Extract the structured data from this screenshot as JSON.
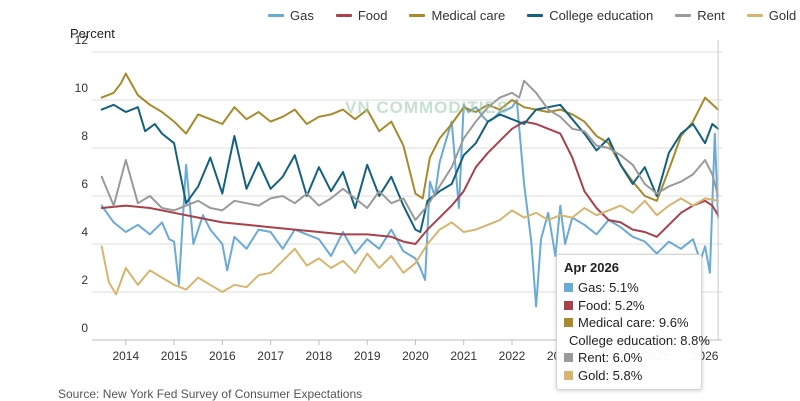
{
  "chart_data": {
    "type": "line",
    "ylabel": "Percent",
    "ylim": [
      0,
      12
    ],
    "yticks": [
      0,
      2,
      4,
      6,
      8,
      10,
      12
    ],
    "xlim": [
      2013.3,
      2026.35
    ],
    "xticks": [
      "2014",
      "2015",
      "2016",
      "2017",
      "2018",
      "2019",
      "2020",
      "2021",
      "2022",
      "2023",
      "2024",
      "2025",
      "2026"
    ],
    "grid": "horizontal",
    "legend_position": "top",
    "source": "Source: New York Fed Survey of Consumer Expectations",
    "series": [
      {
        "name": "Gas",
        "color": "#6aaad6",
        "x": [
          2013.5,
          2013.75,
          2014.0,
          2014.25,
          2014.5,
          2014.75,
          2014.9,
          2015.0,
          2015.1,
          2015.25,
          2015.4,
          2015.6,
          2015.75,
          2016.0,
          2016.1,
          2016.25,
          2016.5,
          2016.75,
          2017.0,
          2017.25,
          2017.5,
          2017.75,
          2018.0,
          2018.25,
          2018.5,
          2018.75,
          2019.0,
          2019.25,
          2019.5,
          2019.75,
          2020.0,
          2020.1,
          2020.2,
          2020.3,
          2020.4,
          2020.5,
          2020.6,
          2020.75,
          2020.9,
          2021.0,
          2021.1,
          2021.25,
          2021.4,
          2021.5,
          2021.6,
          2021.75,
          2021.9,
          2022.0,
          2022.1,
          2022.25,
          2022.4,
          2022.5,
          2022.6,
          2022.75,
          2022.9,
          2023.0,
          2023.1,
          2023.25,
          2023.5,
          2023.75,
          2024.0,
          2024.25,
          2024.5,
          2024.75,
          2025.0,
          2025.25,
          2025.5,
          2025.75,
          2025.9,
          2026.0,
          2026.1,
          2026.2,
          2026.27
        ],
        "y": [
          5.6,
          4.9,
          4.5,
          4.8,
          4.4,
          4.9,
          4.2,
          4.1,
          2.3,
          7.3,
          4.0,
          5.2,
          4.6,
          4.0,
          2.9,
          4.3,
          3.8,
          4.6,
          4.5,
          3.8,
          4.6,
          4.4,
          4.2,
          3.5,
          4.5,
          3.6,
          4.2,
          3.8,
          4.6,
          3.7,
          3.4,
          3.0,
          2.5,
          6.6,
          6.0,
          7.4,
          8.1,
          9.1,
          5.5,
          9.8,
          9.5,
          9.7,
          9.3,
          9.1,
          9.2,
          9.5,
          9.6,
          9.7,
          10.0,
          6.5,
          4.1,
          1.4,
          4.2,
          5.3,
          3.5,
          5.6,
          4.0,
          5.1,
          4.8,
          4.4,
          5.0,
          4.7,
          4.3,
          4.1,
          3.6,
          4.1,
          3.8,
          4.2,
          3.3,
          3.9,
          2.8,
          8.6,
          5.1
        ]
      },
      {
        "name": "Food",
        "color": "#a8414a",
        "x": [
          2013.5,
          2014.0,
          2014.5,
          2015.0,
          2015.5,
          2016.0,
          2016.5,
          2017.0,
          2017.5,
          2018.0,
          2018.5,
          2019.0,
          2019.5,
          2019.75,
          2020.0,
          2020.25,
          2020.5,
          2020.75,
          2021.0,
          2021.25,
          2021.5,
          2021.75,
          2022.0,
          2022.25,
          2022.5,
          2022.75,
          2023.0,
          2023.25,
          2023.5,
          2023.75,
          2024.0,
          2024.25,
          2024.5,
          2024.75,
          2025.0,
          2025.25,
          2025.5,
          2025.75,
          2026.0,
          2026.15,
          2026.27
        ],
        "y": [
          5.5,
          5.6,
          5.5,
          5.3,
          5.1,
          4.9,
          4.8,
          4.7,
          4.6,
          4.5,
          4.4,
          4.4,
          4.3,
          4.1,
          4.0,
          4.6,
          5.1,
          5.6,
          6.2,
          7.2,
          7.8,
          8.3,
          8.8,
          9.1,
          9.0,
          8.8,
          8.6,
          7.6,
          6.2,
          5.5,
          5.0,
          4.9,
          4.6,
          4.5,
          4.3,
          4.8,
          5.3,
          5.6,
          5.8,
          5.6,
          5.2
        ]
      },
      {
        "name": "Medical care",
        "color": "#a88a2c",
        "x": [
          2013.5,
          2013.75,
          2013.9,
          2014.0,
          2014.25,
          2014.5,
          2014.75,
          2015.0,
          2015.25,
          2015.5,
          2015.75,
          2016.0,
          2016.25,
          2016.5,
          2016.75,
          2017.0,
          2017.25,
          2017.5,
          2017.75,
          2018.0,
          2018.25,
          2018.5,
          2018.75,
          2019.0,
          2019.25,
          2019.5,
          2019.75,
          2020.0,
          2020.15,
          2020.3,
          2020.5,
          2020.75,
          2021.0,
          2021.25,
          2021.5,
          2021.75,
          2022.0,
          2022.25,
          2022.5,
          2022.75,
          2023.0,
          2023.25,
          2023.5,
          2023.75,
          2024.0,
          2024.25,
          2024.5,
          2024.75,
          2025.0,
          2025.25,
          2025.5,
          2025.75,
          2026.0,
          2026.27
        ],
        "y": [
          10.1,
          10.3,
          10.7,
          11.1,
          10.2,
          9.8,
          9.5,
          9.1,
          8.6,
          9.4,
          9.2,
          9.0,
          9.7,
          9.2,
          9.5,
          9.1,
          9.3,
          9.6,
          9.0,
          9.3,
          9.4,
          9.6,
          9.2,
          9.6,
          8.7,
          9.1,
          8.1,
          6.1,
          5.9,
          7.6,
          8.4,
          9.0,
          9.7,
          9.5,
          9.8,
          9.6,
          10.0,
          9.7,
          9.6,
          9.5,
          9.6,
          9.4,
          9.1,
          8.5,
          8.2,
          7.3,
          6.6,
          6.0,
          5.8,
          7.1,
          8.5,
          9.1,
          10.1,
          9.6
        ]
      },
      {
        "name": "College education",
        "color": "#13617f",
        "x": [
          2013.5,
          2013.75,
          2014.0,
          2014.25,
          2014.4,
          2014.6,
          2014.75,
          2015.0,
          2015.25,
          2015.5,
          2015.75,
          2016.0,
          2016.25,
          2016.5,
          2016.75,
          2017.0,
          2017.25,
          2017.5,
          2017.75,
          2018.0,
          2018.25,
          2018.5,
          2018.75,
          2019.0,
          2019.25,
          2019.5,
          2019.75,
          2020.0,
          2020.1,
          2020.25,
          2020.5,
          2020.75,
          2021.0,
          2021.25,
          2021.5,
          2021.75,
          2022.0,
          2022.25,
          2022.5,
          2022.75,
          2023.0,
          2023.25,
          2023.5,
          2023.75,
          2024.0,
          2024.25,
          2024.5,
          2024.75,
          2025.0,
          2025.25,
          2025.5,
          2025.75,
          2026.0,
          2026.15,
          2026.27
        ],
        "y": [
          9.6,
          9.8,
          9.5,
          9.7,
          8.7,
          9.0,
          8.6,
          8.2,
          5.7,
          6.4,
          7.6,
          6.1,
          8.5,
          6.3,
          7.4,
          6.3,
          6.8,
          7.7,
          6.0,
          7.2,
          6.2,
          7.0,
          5.5,
          7.3,
          6.0,
          6.8,
          5.6,
          4.6,
          4.5,
          5.8,
          6.2,
          6.5,
          7.7,
          8.2,
          9.1,
          9.4,
          9.2,
          9.0,
          9.6,
          9.7,
          9.8,
          9.2,
          8.6,
          7.9,
          8.4,
          7.3,
          6.5,
          7.2,
          6.0,
          7.8,
          8.6,
          9.0,
          8.2,
          9.0,
          8.8
        ]
      },
      {
        "name": "Rent",
        "color": "#9a9a9a",
        "x": [
          2013.5,
          2013.75,
          2014.0,
          2014.25,
          2014.5,
          2014.75,
          2015.0,
          2015.25,
          2015.5,
          2015.75,
          2016.0,
          2016.25,
          2016.5,
          2016.75,
          2017.0,
          2017.25,
          2017.5,
          2017.75,
          2018.0,
          2018.25,
          2018.5,
          2018.75,
          2019.0,
          2019.25,
          2019.5,
          2019.75,
          2020.0,
          2020.25,
          2020.5,
          2020.75,
          2021.0,
          2021.25,
          2021.5,
          2021.75,
          2022.0,
          2022.15,
          2022.25,
          2022.5,
          2022.75,
          2023.0,
          2023.25,
          2023.5,
          2023.75,
          2024.0,
          2024.25,
          2024.5,
          2024.75,
          2025.0,
          2025.25,
          2025.5,
          2025.75,
          2026.0,
          2026.15,
          2026.27
        ],
        "y": [
          6.8,
          5.6,
          7.5,
          5.7,
          6.0,
          5.5,
          5.4,
          5.6,
          5.8,
          5.5,
          5.4,
          5.8,
          5.7,
          5.6,
          5.9,
          6.0,
          5.7,
          6.1,
          5.6,
          5.9,
          6.3,
          5.9,
          5.5,
          6.2,
          5.7,
          5.9,
          5.0,
          5.6,
          6.4,
          7.2,
          8.4,
          9.1,
          9.7,
          10.1,
          10.3,
          10.1,
          10.8,
          10.3,
          9.6,
          9.3,
          8.8,
          8.7,
          8.1,
          8.0,
          7.7,
          7.3,
          6.5,
          6.1,
          6.4,
          6.6,
          6.9,
          7.5,
          6.9,
          6.0
        ]
      },
      {
        "name": "Gold",
        "color": "#d8b56e",
        "x": [
          2013.5,
          2013.65,
          2013.8,
          2014.0,
          2014.25,
          2014.5,
          2014.75,
          2015.0,
          2015.25,
          2015.5,
          2015.75,
          2016.0,
          2016.25,
          2016.5,
          2016.75,
          2017.0,
          2017.25,
          2017.5,
          2017.75,
          2018.0,
          2018.25,
          2018.5,
          2018.75,
          2019.0,
          2019.25,
          2019.5,
          2019.75,
          2020.0,
          2020.25,
          2020.5,
          2020.75,
          2021.0,
          2021.25,
          2021.5,
          2021.75,
          2022.0,
          2022.25,
          2022.5,
          2022.75,
          2023.0,
          2023.25,
          2023.5,
          2023.75,
          2024.0,
          2024.25,
          2024.5,
          2024.75,
          2025.0,
          2025.25,
          2025.5,
          2025.75,
          2026.0,
          2026.27
        ],
        "y": [
          3.9,
          2.4,
          1.9,
          3.0,
          2.3,
          2.9,
          2.6,
          2.3,
          2.1,
          2.6,
          2.3,
          2.0,
          2.3,
          2.2,
          2.7,
          2.8,
          3.3,
          3.8,
          3.1,
          3.4,
          3.0,
          3.3,
          2.8,
          3.6,
          3.0,
          3.5,
          2.8,
          3.2,
          4.0,
          4.6,
          4.9,
          4.5,
          4.6,
          4.8,
          5.0,
          5.4,
          5.1,
          5.3,
          5.0,
          5.2,
          5.1,
          5.5,
          5.2,
          5.4,
          5.6,
          5.3,
          5.8,
          5.2,
          5.6,
          5.9,
          5.6,
          5.9,
          5.8
        ]
      }
    ],
    "crosshair_x": 2026.27,
    "tooltip": {
      "title": "Apr 2026",
      "rows": [
        {
          "label": "Gas: 5.1%",
          "color": "#6aaad6"
        },
        {
          "label": "Food: 5.2%",
          "color": "#a8414a"
        },
        {
          "label": "Medical care: 9.6%",
          "color": "#a88a2c"
        },
        {
          "label": "College education: 8.8%",
          "color": "#13617f"
        },
        {
          "label": "Rent: 6.0%",
          "color": "#9a9a9a"
        },
        {
          "label": "Gold: 5.8%",
          "color": "#d8b56e"
        }
      ]
    }
  },
  "watermark": "VN COMMODITIES"
}
